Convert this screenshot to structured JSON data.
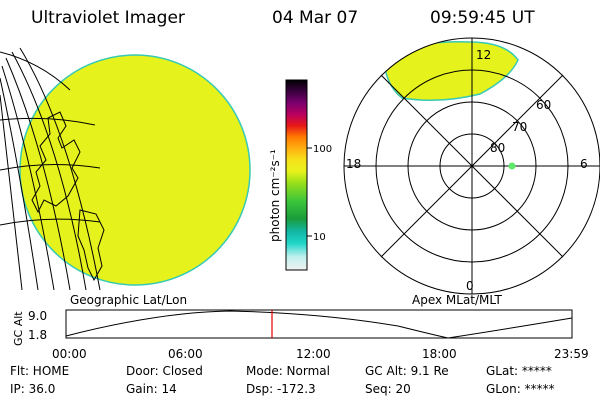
{
  "header": {
    "title": "Ultraviolet Imager",
    "date": "04 Mar 07",
    "time": "09:59:45 UT"
  },
  "colors": {
    "fill": "#e6f21c",
    "edge": "#38c9b4",
    "marker": "#5ee86a",
    "cursor": "#e00000"
  },
  "colorbar": {
    "label": "photon cm⁻²s⁻¹",
    "ticks": [
      "100",
      "10"
    ]
  },
  "polar_plot": {
    "latitude_labels": [
      "80",
      "70",
      "60"
    ],
    "mlt_labels": [
      "12",
      "18",
      "6",
      "0"
    ]
  },
  "panel_captions": {
    "left": "Geographic Lat/Lon",
    "right": "Apex MLat/MLT"
  },
  "altitude_strip": {
    "ylabel": "GC Alt",
    "yticks": [
      "9.0",
      "1.8"
    ],
    "xticks": [
      "00:00",
      "06:00",
      "12:00",
      "18:00",
      "23:59"
    ]
  },
  "info": {
    "row1": [
      "Flt: HOME",
      "Door: Closed",
      "Mode: Normal",
      "GC Alt: 9.1 Re",
      "GLat: *****"
    ],
    "row2": [
      "IP: 36.0",
      "Gain: 14",
      "Dsp: -172.3",
      "Seq: 20",
      "GLon: *****"
    ]
  }
}
